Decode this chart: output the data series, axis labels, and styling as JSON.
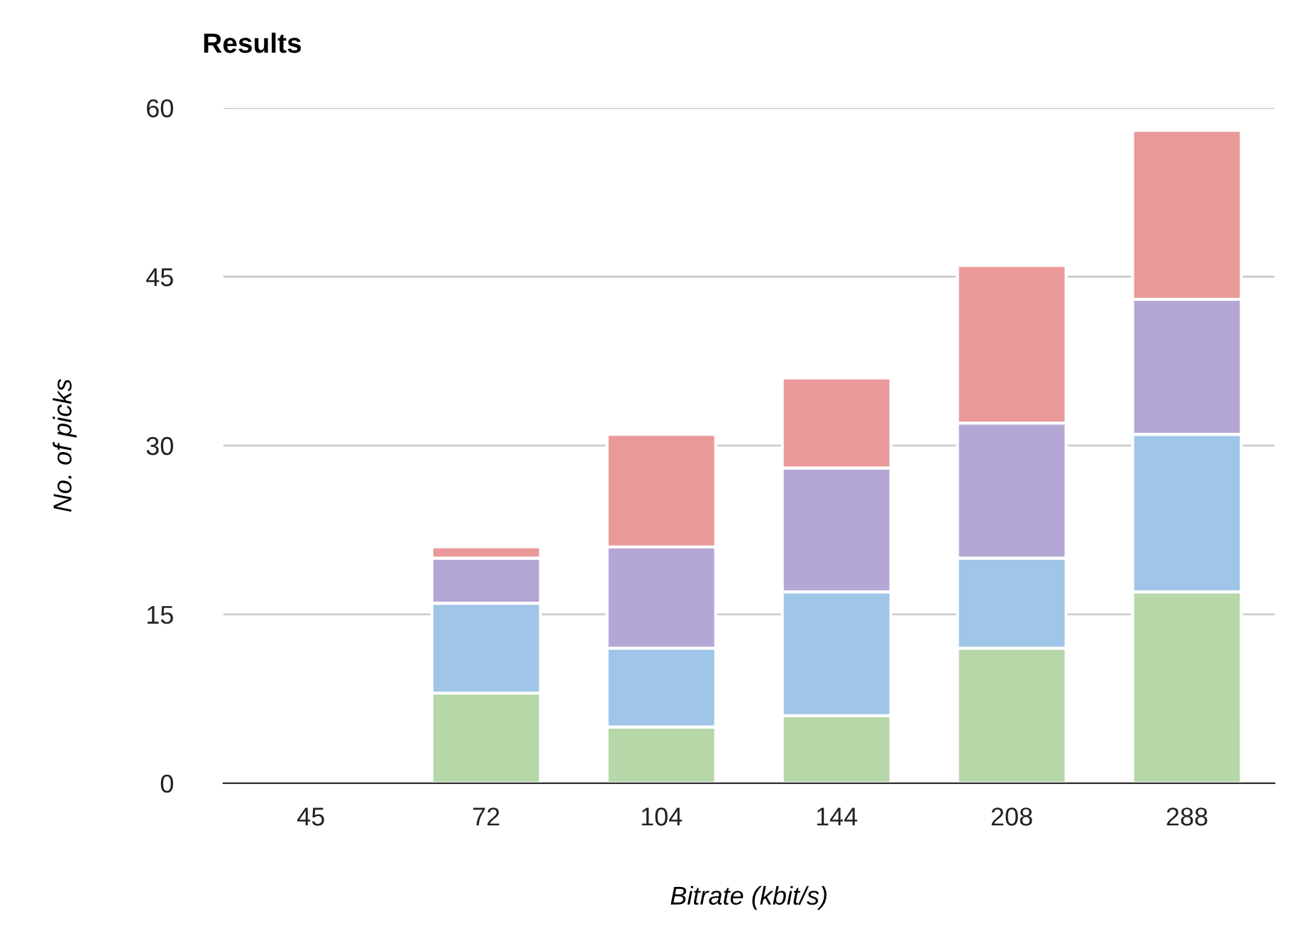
{
  "chart_data": {
    "type": "bar",
    "title": "Results",
    "xlabel": "Bitrate (kbit/s)",
    "ylabel": "No. of picks",
    "categories": [
      "45",
      "72",
      "104",
      "144",
      "208",
      "288"
    ],
    "stacked": true,
    "series": [
      {
        "color": "#b6d7a8",
        "values": [
          0,
          8,
          5,
          6,
          12,
          17
        ]
      },
      {
        "color": "#9fc5e8",
        "values": [
          0,
          8,
          7,
          11,
          8,
          14
        ]
      },
      {
        "color": "#b4a7d6",
        "values": [
          0,
          4,
          9,
          11,
          12,
          12
        ]
      },
      {
        "color": "#ea9999",
        "values": [
          0,
          1,
          10,
          8,
          14,
          15
        ]
      }
    ],
    "ylim": [
      0,
      60
    ],
    "yticks": [
      0,
      15,
      30,
      45,
      60
    ],
    "grid": "y",
    "legend": false
  }
}
